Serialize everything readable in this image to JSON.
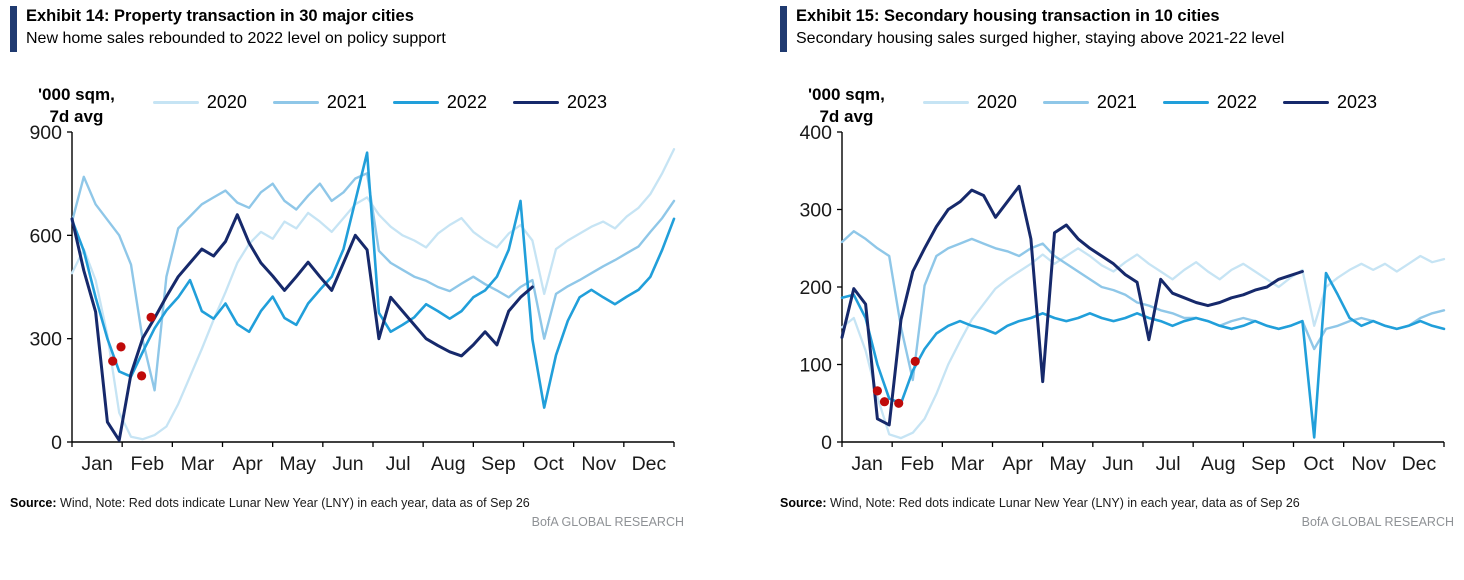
{
  "colors": {
    "accent_bar": "#203a70",
    "axis": "#000000",
    "lny_dot": "#bf0a0a",
    "brand_text": "#8f9296",
    "text": "#1a1a1a"
  },
  "charts": [
    {
      "exhibit_title": "Exhibit 14: Property transaction in 30 major cities",
      "subtitle": "New home sales rebounded to 2022 level on policy support",
      "y_unit_line1": "'000 sqm,",
      "y_unit_line2": "7d avg",
      "source_label": "Source:",
      "source_text": " Wind, Note: Red dots indicate Lunar New Year (LNY) in each year, data as of Sep 26",
      "brand": "BofA GLOBAL RESEARCH",
      "chart_data": {
        "type": "line",
        "title": "Property transaction in 30 major cities",
        "xlabel": "",
        "ylabel": "'000 sqm, 7d avg",
        "ylim": [
          0,
          900
        ],
        "yticks": [
          0,
          300,
          600,
          900
        ],
        "grid": false,
        "legend_position": "top",
        "weeks": 52,
        "months": [
          "Jan",
          "Feb",
          "Mar",
          "Apr",
          "May",
          "Jun",
          "Jul",
          "Aug",
          "Sep",
          "Oct",
          "Nov",
          "Dec"
        ],
        "series": [
          {
            "name": "2020",
            "color": "#c6e4f4",
            "stroke_width": 2.3,
            "values": [
              490,
              560,
              470,
              310,
              85,
              15,
              8,
              20,
              45,
              110,
              190,
              270,
              355,
              435,
              520,
              575,
              610,
              590,
              640,
              620,
              665,
              640,
              610,
              650,
              690,
              710,
              660,
              625,
              600,
              585,
              565,
              605,
              630,
              650,
              610,
              585,
              565,
              605,
              630,
              585,
              430,
              560,
              585,
              605,
              625,
              640,
              620,
              655,
              680,
              720,
              780,
              850
            ]
          },
          {
            "name": "2021",
            "color": "#8fc7e8",
            "stroke_width": 2.4,
            "values": [
              640,
              770,
              690,
              645,
              600,
              515,
              295,
              150,
              480,
              620,
              655,
              690,
              710,
              730,
              695,
              680,
              725,
              750,
              700,
              675,
              715,
              750,
              700,
              725,
              765,
              780,
              555,
              520,
              500,
              480,
              468,
              450,
              438,
              460,
              480,
              458,
              440,
              420,
              450,
              470,
              300,
              430,
              452,
              470,
              490,
              510,
              528,
              548,
              568,
              610,
              650,
              700
            ]
          },
          {
            "name": "2022",
            "color": "#219fda",
            "stroke_width": 2.6,
            "values": [
              645,
              555,
              420,
              300,
              205,
              190,
              262,
              330,
              382,
              420,
              470,
              380,
              358,
              402,
              342,
              320,
              380,
              422,
              360,
              340,
              402,
              442,
              480,
              560,
              700,
              840,
              375,
              320,
              340,
              362,
              400,
              380,
              358,
              380,
              420,
              440,
              480,
              558,
              700,
              298,
              100,
              252,
              352,
              420,
              442,
              420,
              400,
              422,
              442,
              480,
              558,
              648
            ]
          },
          {
            "name": "2023",
            "color": "#16296b",
            "stroke_width": 3,
            "values": [
              648,
              498,
              378,
              58,
              5,
              198,
              302,
              360,
              422,
              480,
              520,
              560,
              540,
              582,
              660,
              578,
              520,
              482,
              440,
              480,
              522,
              480,
              440,
              520,
              600,
              558,
              300,
              420,
              380,
              340,
              300,
              280,
              262,
              250,
              282,
              320,
              282,
              380,
              420,
              450
            ]
          }
        ],
        "lny_dots": [
          {
            "year": "2023",
            "week": 3.45,
            "value": 235
          },
          {
            "year": "2020",
            "week": 4.15,
            "value": 276
          },
          {
            "year": "2022",
            "week": 5.9,
            "value": 192
          },
          {
            "year": "2021",
            "week": 6.7,
            "value": 362
          }
        ]
      }
    },
    {
      "exhibit_title": "Exhibit 15: Secondary housing transaction in 10 cities",
      "subtitle": "Secondary housing sales surged higher, staying above 2021-22 level",
      "y_unit_line1": "'000 sqm,",
      "y_unit_line2": "7d avg",
      "source_label": "Source:",
      "source_text": " Wind, Note: Red dots indicate Lunar New Year (LNY) in each year, data as of Sep 26",
      "brand": "BofA GLOBAL RESEARCH",
      "chart_data": {
        "type": "line",
        "title": "Secondary housing transaction in 10 cities",
        "xlabel": "",
        "ylabel": "'000 sqm, 7d avg",
        "ylim": [
          0,
          400
        ],
        "yticks": [
          0,
          100,
          200,
          300,
          400
        ],
        "grid": false,
        "legend_position": "top",
        "weeks": 52,
        "months": [
          "Jan",
          "Feb",
          "Mar",
          "Apr",
          "May",
          "Jun",
          "Jul",
          "Aug",
          "Sep",
          "Oct",
          "Nov",
          "Dec"
        ],
        "series": [
          {
            "name": "2020",
            "color": "#c6e4f4",
            "stroke_width": 2.3,
            "values": [
              148,
              160,
              118,
              58,
              10,
              5,
              12,
              30,
              62,
              100,
              130,
              158,
              178,
              198,
              210,
              220,
              230,
              242,
              230,
              240,
              250,
              240,
              228,
              220,
              232,
              242,
              230,
              220,
              210,
              222,
              232,
              220,
              210,
              222,
              230,
              220,
              210,
              200,
              212,
              222,
              150,
              200,
              212,
              222,
              230,
              222,
              230,
              220,
              230,
              240,
              232,
              236
            ]
          },
          {
            "name": "2021",
            "color": "#8fc7e8",
            "stroke_width": 2.4,
            "values": [
              258,
              272,
              262,
              250,
              240,
              148,
              80,
              202,
              240,
              250,
              256,
              262,
              256,
              250,
              246,
              240,
              250,
              256,
              240,
              230,
              220,
              210,
              200,
              196,
              190,
              180,
              176,
              170,
              166,
              160,
              160,
              156,
              150,
              156,
              160,
              156,
              150,
              146,
              150,
              156,
              120,
              146,
              150,
              156,
              160,
              156,
              150,
              146,
              150,
              160,
              166,
              170
            ]
          },
          {
            "name": "2022",
            "color": "#219fda",
            "stroke_width": 2.6,
            "values": [
              186,
              190,
              160,
              100,
              56,
              50,
              92,
              120,
              140,
              150,
              156,
              150,
              146,
              140,
              150,
              156,
              160,
              166,
              160,
              156,
              160,
              166,
              160,
              156,
              160,
              166,
              160,
              156,
              150,
              156,
              160,
              156,
              150,
              146,
              150,
              156,
              150,
              146,
              150,
              156,
              6,
              218,
              190,
              160,
              150,
              156,
              150,
              146,
              150,
              156,
              150,
              146
            ]
          },
          {
            "name": "2023",
            "color": "#16296b",
            "stroke_width": 3,
            "values": [
              135,
              198,
              178,
              30,
              22,
              158,
              220,
              250,
              278,
              300,
              310,
              325,
              318,
              290,
              310,
              330,
              262,
              78,
              270,
              280,
              262,
              250,
              240,
              230,
              216,
              206,
              132,
              210,
              192,
              186,
              180,
              176,
              180,
              186,
              190,
              196,
              200,
              210,
              215,
              220
            ]
          }
        ],
        "lny_dots": [
          {
            "year": "2020",
            "week": 3.0,
            "value": 66
          },
          {
            "year": "2023",
            "week": 3.6,
            "value": 52
          },
          {
            "year": "2022",
            "week": 4.8,
            "value": 50
          },
          {
            "year": "2021",
            "week": 6.2,
            "value": 104
          }
        ]
      }
    }
  ]
}
